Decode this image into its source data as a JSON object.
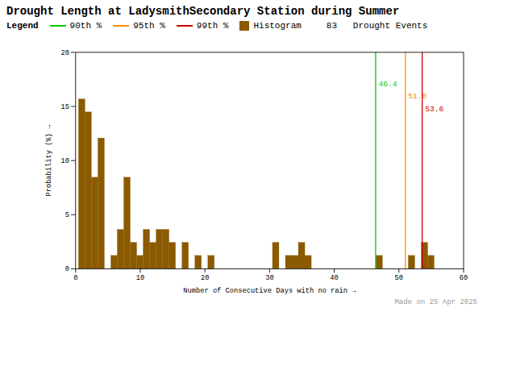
{
  "chart_data": {
    "type": "histogram",
    "title": "Drought Length at LadysmithSecondary Station during Summer",
    "xlabel": "Number of Consecutive Days with no rain",
    "ylabel": "Probability (%)",
    "bins": [
      0.5,
      1.5,
      2.5,
      3.5,
      4.5,
      5.5,
      6.5,
      7.5,
      8.5,
      9.5,
      10.5,
      11.5,
      12.5,
      13.5,
      14.5,
      15.5,
      16.5,
      17.5,
      18.5,
      19.5,
      20.5,
      21.5,
      22.5,
      23.5,
      24.5,
      25.5,
      26.5,
      27.5,
      28.5,
      29.5,
      30.5,
      31.5,
      32.5,
      33.5,
      34.5,
      35.5,
      36.5,
      37.5,
      38.5,
      39.5,
      40.5,
      41.5,
      42.5,
      43.5,
      44.5,
      45.5,
      46.5,
      47.5,
      48.5,
      49.5,
      50.5,
      51.5,
      52.5,
      53.5,
      54.5,
      55.5,
      56.5,
      57.5,
      58.5,
      59.5
    ],
    "series": [
      {
        "name": "Histogram",
        "color": "#8B5A00",
        "values": [
          15.66,
          14.46,
          8.43,
          12.05,
          0.0,
          1.2,
          3.61,
          8.43,
          2.41,
          1.2,
          3.61,
          2.41,
          3.61,
          3.61,
          2.41,
          0.0,
          2.41,
          0.0,
          1.2,
          0.0,
          1.2,
          0.0,
          0.0,
          0.0,
          0.0,
          0.0,
          0.0,
          0.0,
          0.0,
          0.0,
          2.41,
          0.0,
          1.2,
          1.2,
          2.41,
          1.2,
          0.0,
          0.0,
          0.0,
          0.0,
          0.0,
          0.0,
          0.0,
          0.0,
          0.0,
          0.0,
          1.2,
          0.0,
          0.0,
          0.0,
          0.0,
          1.2,
          0.0,
          2.41,
          1.2,
          0.0,
          0.0,
          0.0,
          0.0
        ]
      }
    ],
    "percentiles": [
      {
        "name": "90th %",
        "color": "#00CC00",
        "value": 46.4
      },
      {
        "name": "95th %",
        "color": "#FF8C00",
        "value": 51.0,
        "label": "51.0"
      },
      {
        "name": "99th %",
        "color": "#CC0000",
        "value": 53.6
      }
    ],
    "drought_events": {
      "value": 83,
      "label": "83   Drought Events"
    },
    "legend": "top",
    "legend_title": "Legend",
    "annotations": [
      "Made on 25 Apr 2025"
    ],
    "xlim": [
      0,
      60
    ],
    "ylim": [
      0,
      20
    ],
    "xticks": [
      0,
      10,
      20,
      30,
      40,
      50,
      60
    ],
    "yticks": [
      0,
      5,
      10,
      15,
      20
    ],
    "grid": false
  }
}
